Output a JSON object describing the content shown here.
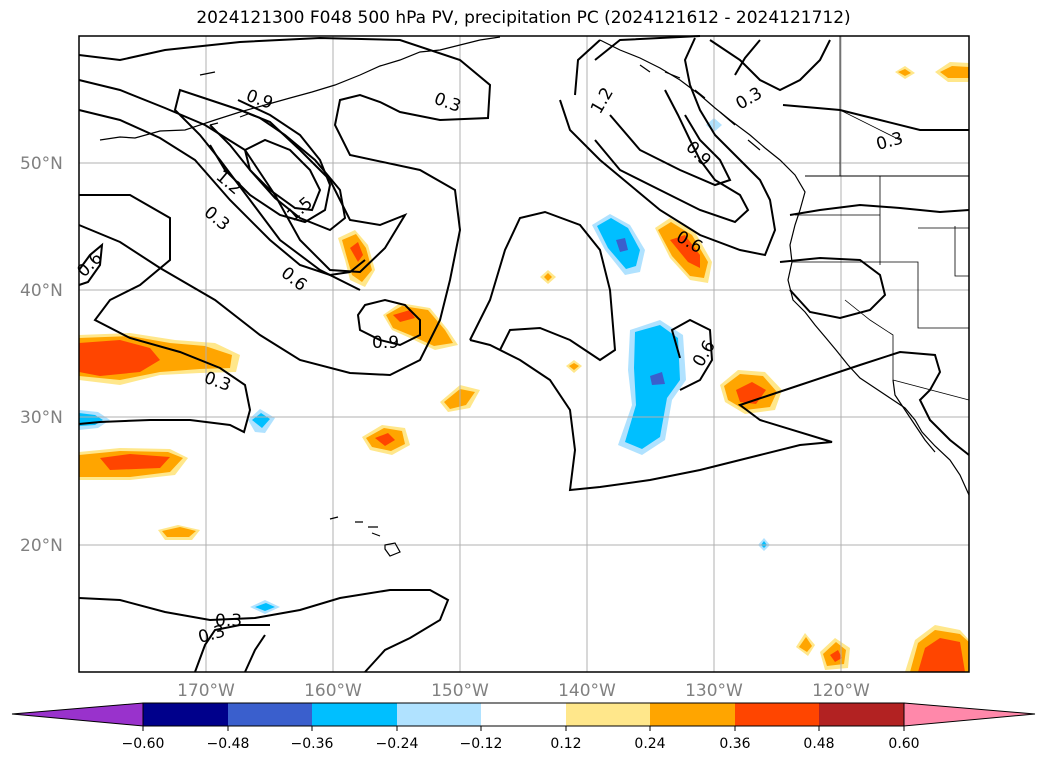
{
  "title": "2024121300 F048 500 hPa PV, precipitation PC (2024121612 - 2024121712)",
  "map": {
    "lat_labels": [
      "50°N",
      "40°N",
      "30°N",
      "20°N"
    ],
    "lon_labels": [
      "170°W",
      "160°W",
      "150°W",
      "140°W",
      "130°W",
      "120°W"
    ],
    "contour_labels": [
      "0.9",
      "0.3",
      "1.2",
      "0.3",
      "1.5",
      "0.6",
      "0.6",
      "0.9",
      "0.3",
      "1.2",
      "0.9",
      "0.3",
      "0.3",
      "0.6",
      "0.6",
      "0.3",
      "0.3"
    ]
  },
  "colorbar": {
    "ticks": [
      "−0.60",
      "−0.48",
      "−0.36",
      "−0.24",
      "−0.12",
      "0.12",
      "0.24",
      "0.36",
      "0.48",
      "0.60"
    ],
    "colors": [
      "#9932cc",
      "#00008b",
      "#3a5fcd",
      "#00bfff",
      "#b0e2ff",
      "#ffffff",
      "#ffe78b",
      "#ffa500",
      "#ff4500",
      "#b22222",
      "#ff88aa"
    ]
  }
}
